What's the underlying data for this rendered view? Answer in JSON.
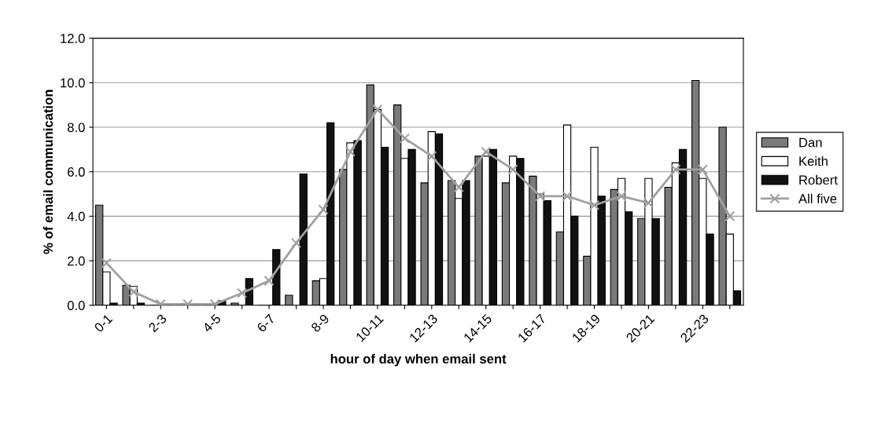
{
  "chart_data": {
    "type": "bar",
    "xlabel": "hour of day when email sent",
    "ylabel": "% of email communication",
    "categories": [
      "0-1",
      null,
      "2-3",
      null,
      "4-5",
      null,
      "6-7",
      null,
      "8-9",
      null,
      "10-11",
      null,
      "12-13",
      null,
      "14-15",
      null,
      "16-17",
      null,
      "18-19",
      null,
      "20-21",
      null,
      "22-23",
      null
    ],
    "series": [
      {
        "name": "Dan",
        "color": "#7a7a7a",
        "values": [
          4.5,
          0.9,
          0,
          0,
          0,
          0.1,
          0,
          0.45,
          1.1,
          6.1,
          9.9,
          9.0,
          5.5,
          5.6,
          6.7,
          5.5,
          5.8,
          3.3,
          2.2,
          5.2,
          3.9,
          5.3,
          10.1,
          8.0
        ]
      },
      {
        "name": "Keith",
        "color": "#ffffff",
        "values": [
          1.5,
          0.85,
          0,
          0,
          0,
          0,
          0,
          null,
          1.2,
          7.3,
          8.8,
          6.6,
          7.8,
          4.8,
          6.7,
          6.7,
          5.0,
          8.1,
          7.1,
          5.7,
          5.7,
          6.4,
          5.7,
          3.2
        ]
      },
      {
        "name": "Robert",
        "color": "#111111",
        "values": [
          0.1,
          0.1,
          0,
          0,
          0.2,
          1.2,
          2.5,
          5.9,
          8.2,
          7.4,
          7.1,
          7.0,
          7.7,
          5.6,
          7.0,
          6.6,
          4.7,
          4.0,
          4.9,
          4.2,
          3.9,
          7.0,
          3.2,
          0.65
        ]
      },
      {
        "name": "All five",
        "type": "line",
        "color": "#a0a0a0",
        "marker": "cross",
        "values": [
          1.9,
          0.6,
          0.05,
          0.05,
          0.05,
          0.55,
          1.1,
          2.8,
          4.3,
          6.9,
          8.8,
          7.5,
          6.7,
          5.3,
          6.9,
          6.1,
          4.9,
          4.9,
          4.5,
          4.9,
          4.6,
          6.1,
          6.1,
          4.0
        ]
      }
    ],
    "ylim": [
      0,
      12
    ],
    "yticks": [
      {
        "value": 0,
        "label": "0.0"
      },
      {
        "value": 2,
        "label": "2.0"
      },
      {
        "value": 4,
        "label": "4.0"
      },
      {
        "value": 6,
        "label": "6.0"
      },
      {
        "value": 8,
        "label": "8.0"
      },
      {
        "value": 10,
        "label": "10.0"
      },
      {
        "value": 12,
        "label": "12.0"
      }
    ],
    "grid": "y",
    "legend": "right"
  }
}
